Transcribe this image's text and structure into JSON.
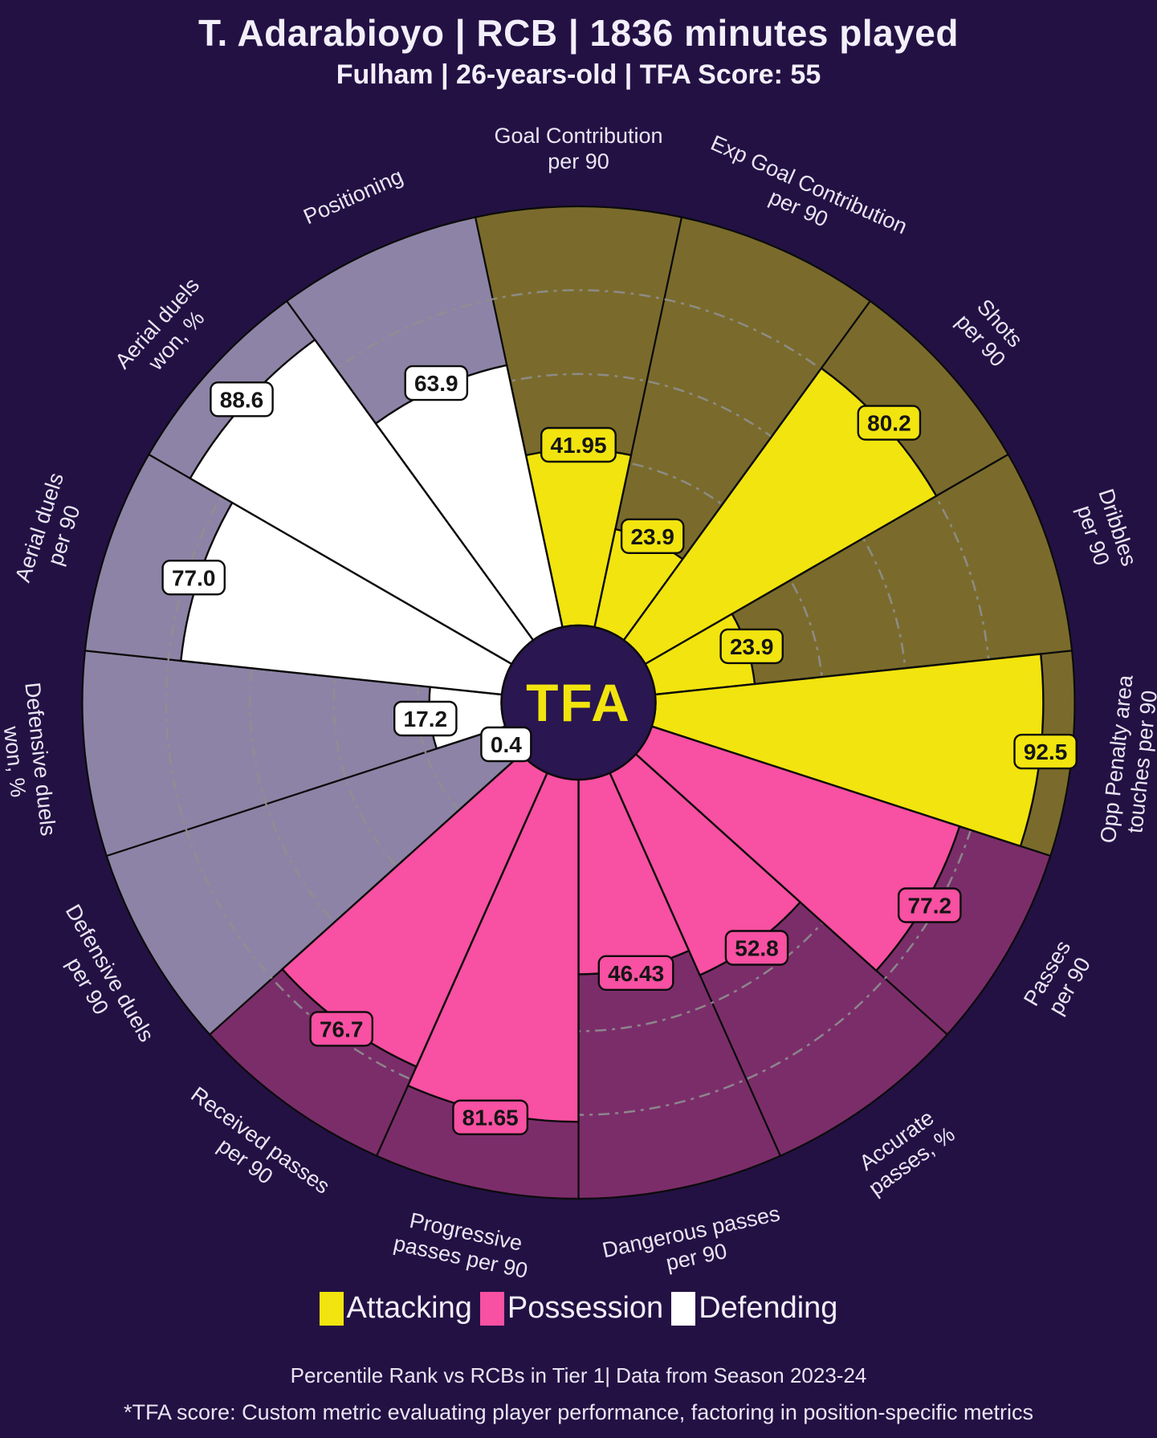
{
  "header": {
    "title": "T. Adarabioyo | RCB | 1836 minutes played",
    "subtitle": "Fulham | 26-years-old | TFA Score: 55"
  },
  "chart_data": {
    "type": "polar_bar",
    "unit": "percentile",
    "rlim": [
      0,
      100
    ],
    "gridlines": [
      20,
      40,
      60,
      80
    ],
    "grid_style": "dash-dot",
    "center_logo": "TFA",
    "categories": [
      {
        "id": "attacking",
        "label": "Attacking",
        "color": "#f2e40e",
        "bg": "#7a6b2c"
      },
      {
        "id": "possession",
        "label": "Possession",
        "color": "#f850a2",
        "bg": "#7b2d6a"
      },
      {
        "id": "defending",
        "label": "Defending",
        "color": "#ffffff",
        "bg": "#8d83a6"
      }
    ],
    "slices": [
      {
        "label": [
          "Goal Contribution",
          "per 90"
        ],
        "value": 41.95,
        "display": "41.95",
        "category": "attacking"
      },
      {
        "label": [
          "Exp Goal Contribution",
          "per 90"
        ],
        "value": 23.9,
        "display": "23.9",
        "category": "attacking"
      },
      {
        "label": [
          "Shots",
          "per 90"
        ],
        "value": 80.2,
        "display": "80.2",
        "category": "attacking"
      },
      {
        "label": [
          "Dribbles",
          "per 90"
        ],
        "value": 23.9,
        "display": "23.9",
        "category": "attacking"
      },
      {
        "label": [
          "Opp Penalty area",
          "touches per 90"
        ],
        "value": 92.5,
        "display": "92.5",
        "category": "attacking"
      },
      {
        "label": [
          "Passes",
          "per 90"
        ],
        "value": 77.2,
        "display": "77.2",
        "category": "possession"
      },
      {
        "label": [
          "Accurate",
          "passes, %"
        ],
        "value": 52.8,
        "display": "52.8",
        "category": "possession"
      },
      {
        "label": [
          "Dangerous passes",
          "per 90"
        ],
        "value": 46.43,
        "display": "46.43",
        "category": "possession"
      },
      {
        "label": [
          "Progressive",
          "passes per 90"
        ],
        "value": 81.65,
        "display": "81.65",
        "category": "possession"
      },
      {
        "label": [
          "Received passes",
          "per 90"
        ],
        "value": 76.7,
        "display": "76.7",
        "category": "possession"
      },
      {
        "label": [
          "Defensive duels",
          "per 90"
        ],
        "value": 0.4,
        "display": "0.4",
        "category": "defending"
      },
      {
        "label": [
          "Defensive duels",
          "won, %"
        ],
        "value": 17.2,
        "display": "17.2",
        "category": "defending"
      },
      {
        "label": [
          "Aerial duels",
          "per 90"
        ],
        "value": 77.0,
        "display": "77.0",
        "category": "defending"
      },
      {
        "label": [
          "Aerial duels",
          "won, %"
        ],
        "value": 88.6,
        "display": "88.6",
        "category": "defending"
      },
      {
        "label": [
          "Positioning"
        ],
        "value": 63.9,
        "display": "63.9",
        "category": "defending"
      }
    ]
  },
  "footer": {
    "source": "Percentile Rank vs RCBs in Tier 1| Data from Season 2023-24",
    "footnote": "*TFA score: Custom metric evaluating player performance, factoring in position-specific metrics"
  },
  "style": {
    "background": "#231144",
    "center_circle": "#2a1650",
    "logo_color": "#f2e40e",
    "gridline_color": "#8f8f8f",
    "outline_color": "#0b0b0b",
    "wedge_label_color": "#e9e5f2",
    "value_text_color": "#151515"
  }
}
